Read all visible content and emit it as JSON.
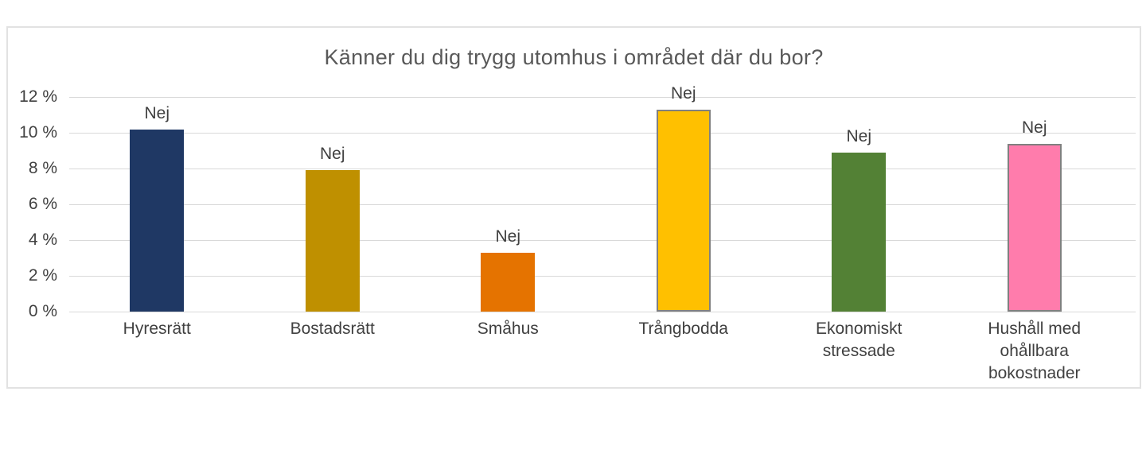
{
  "chart_data": {
    "type": "bar",
    "title": "Känner du dig trygg utomhus i området där du bor?",
    "categories": [
      "Hyresrätt",
      "Bostadsrätt",
      "Småhus",
      "Trångbodda",
      "Ekonomiskt stressade",
      "Hushåll med ohållbara bokostnader"
    ],
    "values": [
      10.2,
      7.9,
      3.3,
      11.3,
      8.9,
      9.4
    ],
    "point_labels": [
      "Nej",
      "Nej",
      "Nej",
      "Nej",
      "Nej",
      "Nej"
    ],
    "bar_colors": [
      "#1F3864",
      "#BF9000",
      "#E57300",
      "#FFC000",
      "#538135",
      "#FF7CAC"
    ],
    "bar_outline_colors": [
      null,
      null,
      null,
      "#808080",
      null,
      "#808080"
    ],
    "xlabel": "",
    "ylabel": "",
    "ylim": [
      0,
      12
    ],
    "y_ticks": [
      0,
      2,
      4,
      6,
      8,
      10,
      12
    ],
    "y_tick_labels": [
      "0 %",
      "2 %",
      "4 %",
      "6 %",
      "8 %",
      "10 %",
      "12 %"
    ],
    "grid": true,
    "legend": "none",
    "colors": {
      "title_text": "#595959",
      "axis_text": "#404040",
      "gridline": "#d9d9d9",
      "frame_border": "#e2e2e2",
      "background": "#ffffff"
    }
  }
}
